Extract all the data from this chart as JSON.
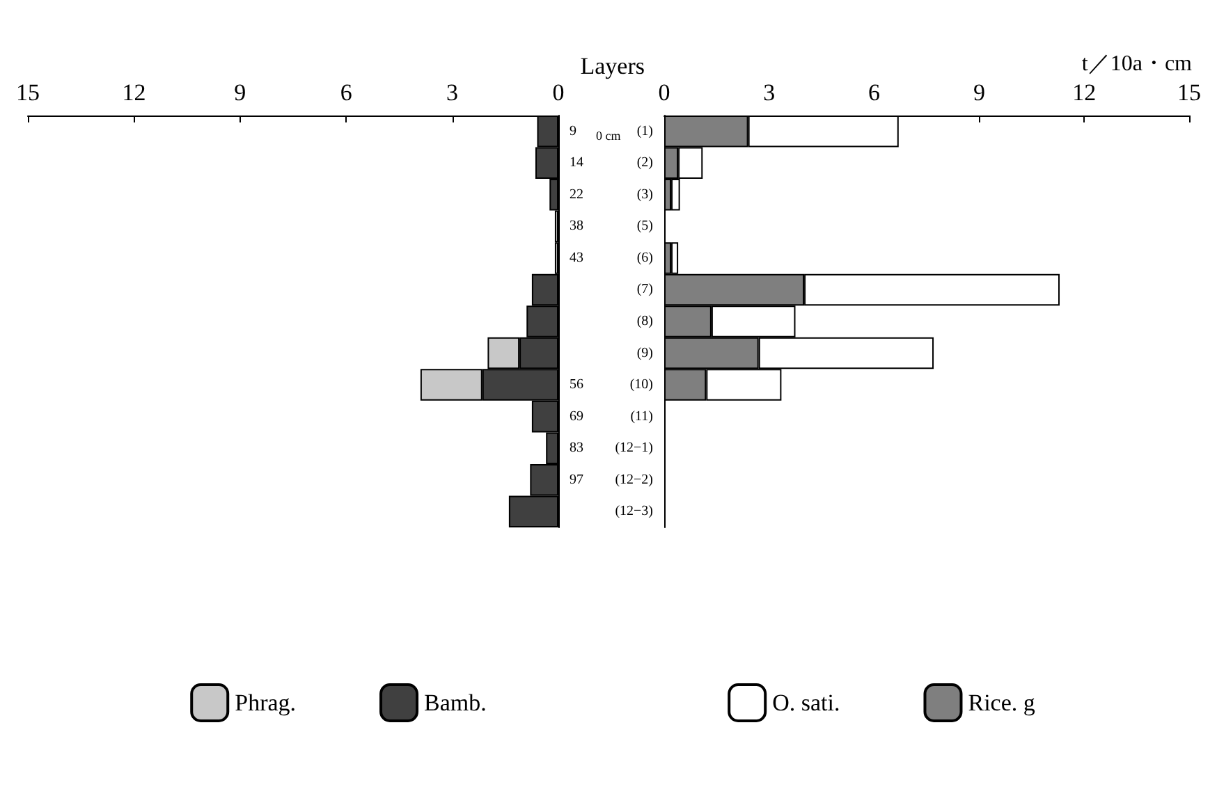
{
  "chart_data": [
    {
      "type": "bar",
      "orientation": "horizontal",
      "stacked": true,
      "title": "Layers",
      "annotations": [
        "0 cm"
      ],
      "categories": [
        "9",
        "14",
        "22",
        "38",
        "43",
        null,
        null,
        null,
        "56",
        "69",
        "83",
        "97",
        null
      ],
      "series": [
        {
          "name": "Bamb.",
          "color": "#404040",
          "values": [
            0.6,
            0.65,
            0.25,
            0,
            0,
            0.75,
            0.9,
            1.1,
            2.15,
            0.75,
            0.35,
            0.8,
            1.4
          ]
        },
        {
          "name": "Phrag.",
          "color": "#c8c8c8",
          "values": [
            0,
            0,
            0,
            0.1,
            0.1,
            0,
            0,
            0.9,
            1.75,
            0,
            0,
            0,
            0
          ]
        }
      ],
      "xlim": [
        15,
        0
      ],
      "xticks": [
        15,
        12,
        9,
        6,
        3,
        0
      ],
      "grid": false,
      "legend": "bottom"
    },
    {
      "type": "bar",
      "orientation": "horizontal",
      "stacked": true,
      "xlabel": "t／10a・cm",
      "categories": [
        "(1)",
        "(2)",
        "(3)",
        "(5)",
        "(6)",
        "(7)",
        "(8)",
        "(9)",
        "(10)",
        "(11)",
        "(12−1)",
        "(12−2)",
        "(12−3)"
      ],
      "series": [
        {
          "name": "Rice. g",
          "color": "#7f7f7f",
          "values": [
            2.4,
            0.4,
            0.2,
            0,
            0.2,
            4.0,
            1.35,
            2.7,
            1.2,
            0,
            0,
            0,
            0
          ]
        },
        {
          "name": "O. sati.",
          "color": "#ffffff",
          "values": [
            4.3,
            0.7,
            0.25,
            0,
            0.2,
            7.3,
            2.4,
            5.0,
            2.15,
            0,
            0,
            0,
            0
          ]
        }
      ],
      "xlim": [
        0,
        15
      ],
      "xticks": [
        0,
        3,
        6,
        9,
        12,
        15
      ],
      "grid": false,
      "legend": "bottom"
    }
  ]
}
